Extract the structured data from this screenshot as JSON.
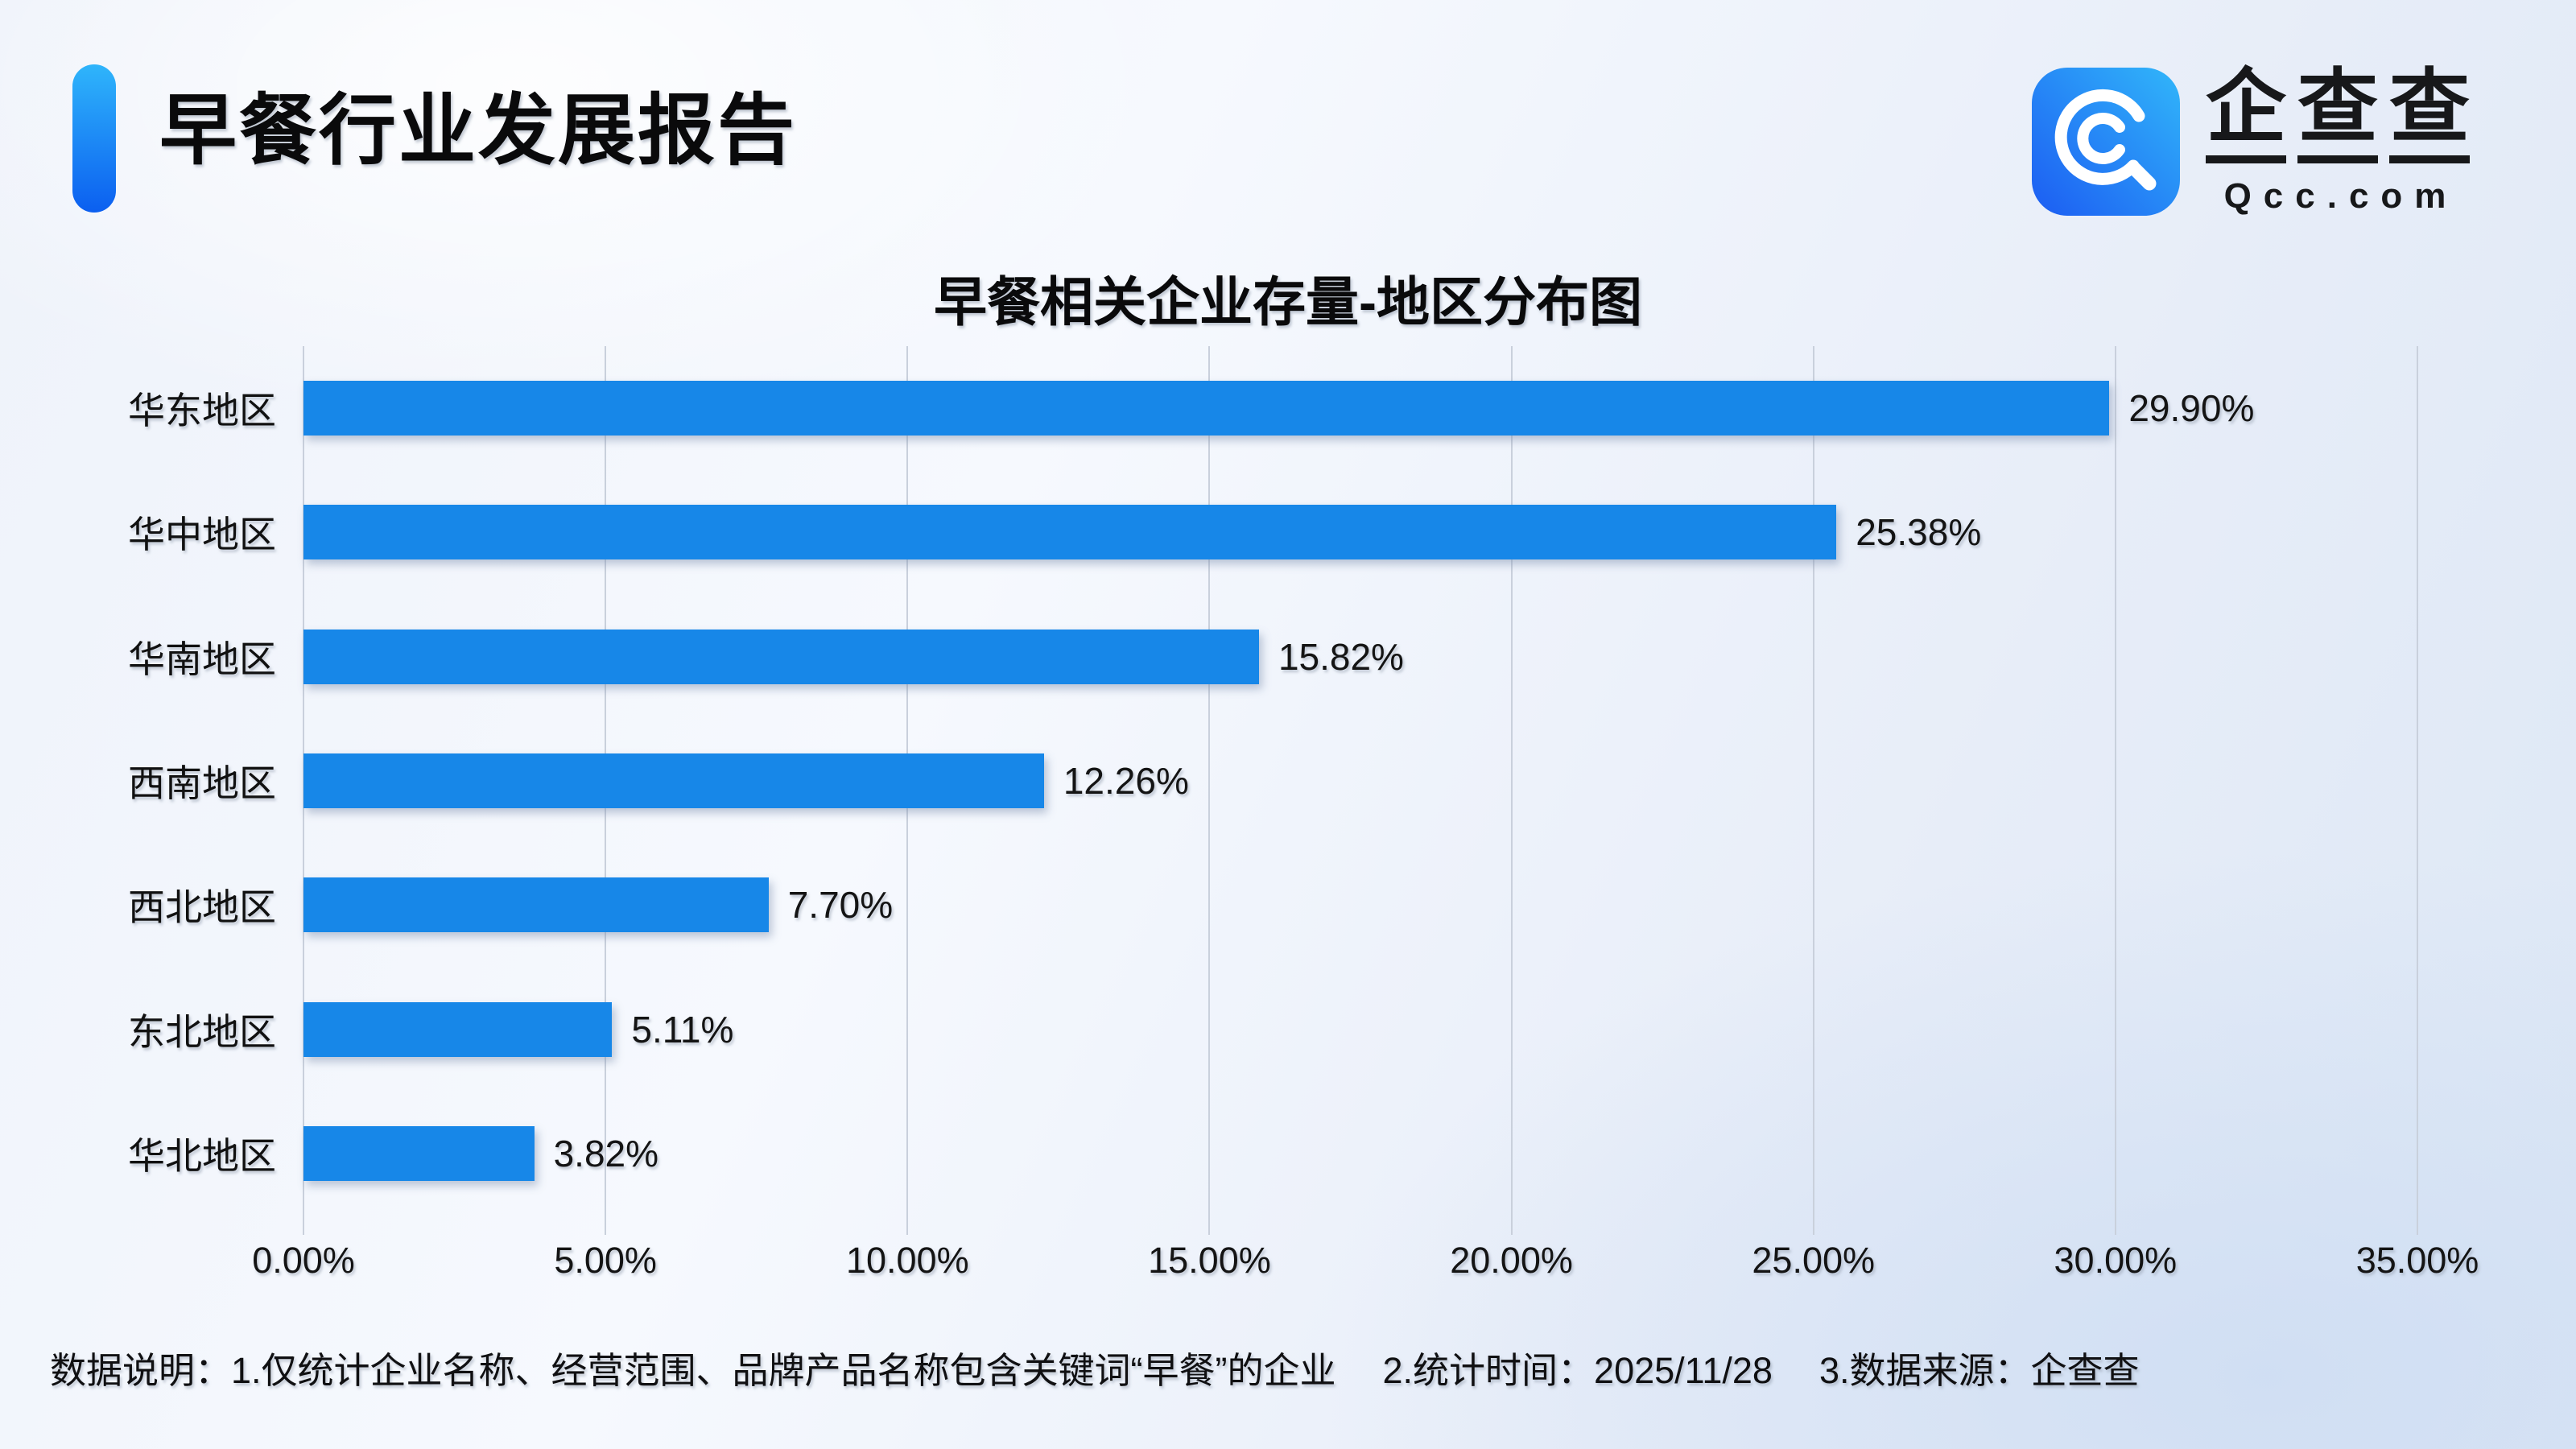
{
  "header": {
    "title": "早餐行业发展报告"
  },
  "logo": {
    "icon": "qcc-magnifier-icon",
    "chars": [
      "企",
      "查",
      "查"
    ],
    "domain": "Qcc.com",
    "icon_gradient": [
      "#1c5cf2",
      "#31b6fa"
    ]
  },
  "chart_data": {
    "type": "bar",
    "orientation": "horizontal",
    "title": "早餐相关企业存量-地区分布图",
    "categories": [
      "华东地区",
      "华中地区",
      "华南地区",
      "西南地区",
      "西北地区",
      "东北地区",
      "华北地区"
    ],
    "values": [
      29.9,
      25.38,
      15.82,
      12.26,
      7.7,
      5.11,
      3.82
    ],
    "value_labels": [
      "29.90%",
      "25.38%",
      "15.82%",
      "12.26%",
      "7.70%",
      "5.11%",
      "3.82%"
    ],
    "xlim": [
      0,
      35
    ],
    "x_tick_values": [
      0,
      5,
      10,
      15,
      20,
      25,
      30,
      35
    ],
    "x_tick_labels": [
      "0.00%",
      "5.00%",
      "10.00%",
      "15.00%",
      "20.00%",
      "25.00%",
      "30.00%",
      "35.00%"
    ],
    "grid": true,
    "legend": false,
    "bar_color": "#1787e8"
  },
  "footer": {
    "prefix": "数据说明：",
    "items": [
      "1.仅统计企业名称、经营范围、品牌产品名称包含关键词“早餐”的企业",
      "2.统计时间：2025/11/28",
      "3.数据来源：企查查"
    ]
  }
}
